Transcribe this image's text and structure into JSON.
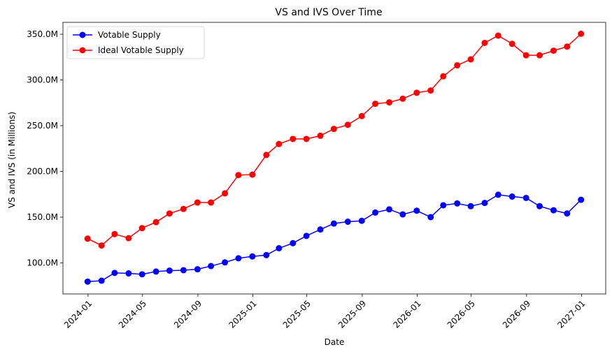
{
  "chart_data": {
    "type": "line",
    "title": "VS and IVS Over Time",
    "xlabel": "Date",
    "ylabel": "VS and IVS (in Millions)",
    "x_ticks": [
      "2024-01",
      "2024-05",
      "2024-09",
      "2025-01",
      "2025-05",
      "2025-09",
      "2026-01",
      "2026-05",
      "2026-09",
      "2027-01"
    ],
    "y_ticks": [
      100,
      150,
      200,
      250,
      300,
      350
    ],
    "y_tick_labels": [
      "100.0M",
      "150.0M",
      "200.0M",
      "250.0M",
      "300.0M",
      "350.0M"
    ],
    "ylim": [
      66,
      363
    ],
    "legend_position": "upper-left",
    "grid": false,
    "x": [
      "2023-12-31",
      "2024-01-31",
      "2024-02-29",
      "2024-03-31",
      "2024-04-30",
      "2024-05-31",
      "2024-06-30",
      "2024-07-31",
      "2024-08-31",
      "2024-09-30",
      "2024-10-31",
      "2024-11-30",
      "2024-12-31",
      "2025-01-31",
      "2025-02-28",
      "2025-03-31",
      "2025-04-30",
      "2025-05-31",
      "2025-06-30",
      "2025-07-31",
      "2025-08-31",
      "2025-09-30",
      "2025-10-31",
      "2025-11-30",
      "2025-12-31",
      "2026-01-31",
      "2026-02-28",
      "2026-03-31",
      "2026-04-30",
      "2026-05-31",
      "2026-06-30",
      "2026-07-31",
      "2026-08-31",
      "2026-09-30",
      "2026-10-31",
      "2026-11-30",
      "2026-12-31"
    ],
    "series": [
      {
        "name": "Votable Supply",
        "color": "#0000ff",
        "values": [
          79.5,
          80.5,
          89.0,
          88.5,
          87.5,
          90.5,
          91.5,
          92.0,
          93.0,
          96.5,
          100.5,
          105.0,
          107.0,
          108.5,
          116.0,
          121.5,
          129.5,
          136.5,
          143.0,
          145.0,
          146.0,
          155.0,
          158.5,
          153.0,
          157.0,
          150.0,
          163.0,
          165.0,
          162.0,
          165.5,
          174.5,
          172.5,
          171.0,
          162.0,
          157.5,
          154.0,
          169.0
        ]
      },
      {
        "name": "Ideal Votable Supply",
        "color": "#ff0000",
        "values": [
          126.5,
          119.0,
          131.5,
          127.0,
          138.0,
          144.5,
          154.0,
          159.0,
          166.0,
          166.0,
          176.0,
          196.0,
          196.5,
          218.0,
          230.0,
          235.5,
          235.5,
          239.0,
          246.5,
          251.0,
          260.5,
          274.0,
          275.5,
          279.5,
          286.0,
          288.5,
          304.0,
          316.0,
          322.5,
          340.5,
          348.5,
          339.5,
          327.0,
          327.0,
          332.0,
          336.5,
          350.5
        ]
      }
    ]
  }
}
